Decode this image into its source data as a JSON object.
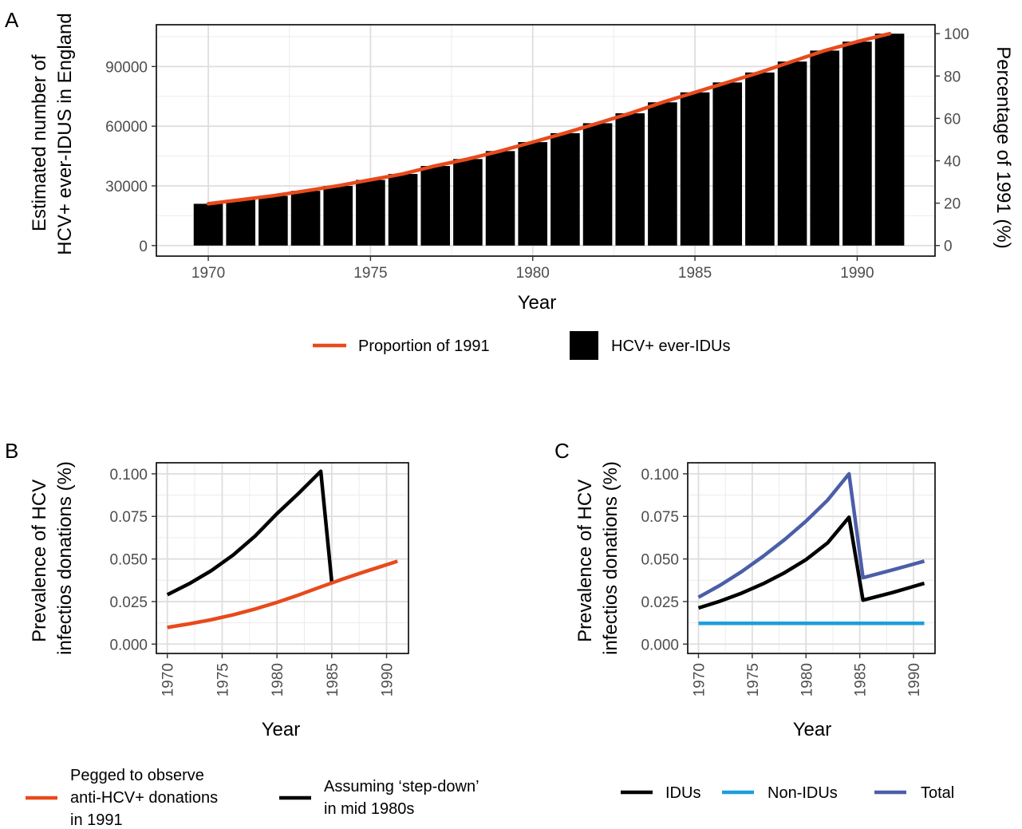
{
  "chart_data": [
    {
      "type": "bar",
      "panel_label": "A",
      "x": [
        1970,
        1971,
        1972,
        1973,
        1974,
        1975,
        1976,
        1977,
        1978,
        1979,
        1980,
        1981,
        1982,
        1983,
        1984,
        1985,
        1986,
        1987,
        1988,
        1989,
        1990,
        1991
      ],
      "values": [
        21000,
        23000,
        25000,
        27500,
        30000,
        33000,
        36000,
        40000,
        43500,
        47500,
        52000,
        56500,
        61500,
        66500,
        72000,
        77000,
        82000,
        87000,
        92500,
        98000,
        102500,
        106500
      ],
      "bar_color": "#000000",
      "ylabel": "Estimated number of HCV+ ever-IDUS in England",
      "y2label": "Percentage of 1991 (%)",
      "xlabel": "Year",
      "xlim": [
        1968.4,
        1992.4
      ],
      "ylim": [
        -5300,
        111000
      ],
      "y2lim": [
        -5,
        104.2
      ],
      "x_ticks": [
        1970,
        1975,
        1980,
        1985,
        1990
      ],
      "y_ticks": [
        0,
        30000,
        60000,
        90000
      ],
      "y2_ticks": [
        0,
        20,
        40,
        60,
        80,
        100
      ],
      "line": {
        "name": "Proportion of 1991",
        "color": "#e84a1c",
        "x": [
          1970,
          1971,
          1972,
          1973,
          1974,
          1975,
          1976,
          1977,
          1978,
          1979,
          1980,
          1981,
          1982,
          1983,
          1984,
          1985,
          1986,
          1987,
          1988,
          1989,
          1990,
          1991
        ],
        "values": [
          19.7,
          21.6,
          23.5,
          25.8,
          28.2,
          31.0,
          33.8,
          37.6,
          40.8,
          44.6,
          48.8,
          53.1,
          57.7,
          62.4,
          67.6,
          72.3,
          77.0,
          81.7,
          86.9,
          92.0,
          96.2,
          100.0
        ]
      },
      "legend": [
        {
          "label": "Proportion of 1991",
          "kind": "line",
          "color": "#e84a1c"
        },
        {
          "label": "HCV+ ever-IDUs",
          "kind": "box",
          "color": "#000000"
        }
      ],
      "legend_position": "bottom",
      "grid": true
    },
    {
      "type": "line",
      "panel_label": "B",
      "xlabel": "Year",
      "ylabel": "Prevalence of HCV infectios donations (%)",
      "xlim": [
        1969,
        1992
      ],
      "ylim": [
        -0.0055,
        0.1065
      ],
      "x_ticks": [
        1970,
        1975,
        1980,
        1985,
        1990
      ],
      "y_ticks": [
        0.0,
        0.025,
        0.05,
        0.075,
        0.1
      ],
      "y_tick_labels": [
        "0.000",
        "0.025",
        "0.050",
        "0.075",
        "0.100"
      ],
      "series": [
        {
          "name": "Assuming ‘step-down’ in mid 1980s",
          "color": "#000000",
          "x": [
            1970,
            1972,
            1974,
            1976,
            1978,
            1980,
            1982,
            1984,
            1985
          ],
          "values": [
            0.029,
            0.0355,
            0.0431,
            0.0523,
            0.0634,
            0.0766,
            0.0887,
            0.1015,
            0.0365
          ]
        },
        {
          "name": "Pegged to observe anti-HCV+ donations in 1991",
          "color": "#e84a1c",
          "x": [
            1970,
            1972,
            1974,
            1976,
            1978,
            1980,
            1982,
            1984,
            1986,
            1988,
            1990,
            1991
          ],
          "values": [
            0.0098,
            0.0119,
            0.0143,
            0.0172,
            0.0206,
            0.0245,
            0.0289,
            0.0336,
            0.0382,
            0.0425,
            0.0466,
            0.0487
          ]
        }
      ],
      "legend": [
        {
          "label_lines": [
            "Pegged to observe",
            "anti-HCV+ donations",
            "in 1991"
          ],
          "color": "#e84a1c"
        },
        {
          "label_lines": [
            "Assuming ‘step-down’",
            "in mid 1980s"
          ],
          "color": "#000000"
        }
      ],
      "legend_position": "bottom",
      "grid": true
    },
    {
      "type": "line",
      "panel_label": "C",
      "xlabel": "Year",
      "ylabel": "Prevalence of HCV infectios donations (%)",
      "xlim": [
        1969,
        1992
      ],
      "ylim": [
        -0.0055,
        0.1065
      ],
      "x_ticks": [
        1970,
        1975,
        1980,
        1985,
        1990
      ],
      "y_ticks": [
        0.0,
        0.025,
        0.05,
        0.075,
        0.1
      ],
      "y_tick_labels": [
        "0.000",
        "0.025",
        "0.050",
        "0.075",
        "0.100"
      ],
      "series": [
        {
          "name": "IDUs",
          "color": "#000000",
          "x": [
            1970,
            1972,
            1974,
            1976,
            1978,
            1980,
            1982,
            1984,
            1985.3,
            1988,
            1991
          ],
          "values": [
            0.0212,
            0.0252,
            0.0299,
            0.0354,
            0.0419,
            0.0496,
            0.0594,
            0.0745,
            0.0258,
            0.0302,
            0.0357
          ]
        },
        {
          "name": "Non-IDUs",
          "color": "#1b9fdc",
          "x": [
            1970,
            1991
          ],
          "values": [
            0.0122,
            0.0122
          ]
        },
        {
          "name": "Total",
          "color": "#4b5ea8",
          "x": [
            1970,
            1972,
            1974,
            1976,
            1978,
            1980,
            1982,
            1984,
            1985.3,
            1988,
            1991
          ],
          "values": [
            0.0275,
            0.0345,
            0.0425,
            0.0515,
            0.0613,
            0.0722,
            0.0845,
            0.1,
            0.039,
            0.0435,
            0.0487
          ]
        }
      ],
      "legend": [
        {
          "label": "IDUs",
          "color": "#000000"
        },
        {
          "label": "Non-IDUs",
          "color": "#1b9fdc"
        },
        {
          "label": "Total",
          "color": "#4b5ea8"
        }
      ],
      "legend_position": "bottom",
      "grid": true
    }
  ]
}
